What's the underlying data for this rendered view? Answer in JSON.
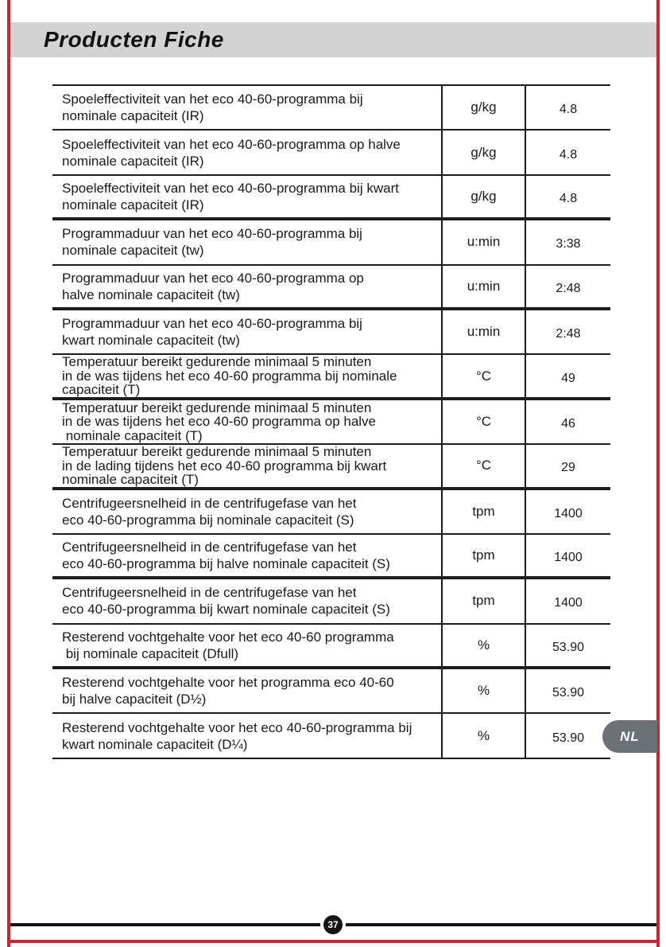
{
  "page": {
    "title": "Producten Fiche",
    "language_badge": "NL",
    "page_number": "37"
  },
  "colors": {
    "border_red": "#cb2733",
    "title_bar_gray": "#d3d3d3",
    "badge_gray": "#6c7177",
    "line_black": "#1d1d1d"
  },
  "table": {
    "rows": [
      {
        "description": "Spoeleffectiviteit van het eco 40-60-programma bij\nnominale capaciteit (IR)",
        "unit": "g/kg",
        "value": "4.8",
        "divider_below": "thin"
      },
      {
        "description": "Spoeleffectiviteit van het eco 40-60-programma op halve\nnominale capaciteit (IR)",
        "unit": "g/kg",
        "value": "4.8",
        "divider_below": "thin"
      },
      {
        "description": "Spoeleffectiviteit van het eco 40-60-programma bij kwart\nnominale capaciteit (IR)",
        "unit": "g/kg",
        "value": "4.8",
        "divider_below": "thick"
      },
      {
        "description": "Programmaduur van het eco 40-60-programma bij\nnominale capaciteit (tw)",
        "unit": "u:min",
        "value": "3:38",
        "divider_below": "thin"
      },
      {
        "description": "Programmaduur van het eco 40-60-programma op\nhalve nominale capaciteit (tw)",
        "unit": "u:min",
        "value": "2:48",
        "divider_below": "thick"
      },
      {
        "description": "Programmaduur van het eco 40-60-programma bij\nkwart nominale capaciteit (tw)",
        "unit": "u:min",
        "value": "2:48",
        "divider_below": "thin"
      },
      {
        "description": "Temperatuur bereikt gedurende minimaal 5 minuten\nin de was tijdens het eco 40-60 programma bij nominale\ncapaciteit (T)",
        "unit": "°C",
        "value": "49",
        "divider_below": "thick"
      },
      {
        "description": "Temperatuur bereikt gedurende minimaal 5 minuten\nin de was tijdens het eco 40-60 programma op halve\n nominale capaciteit (T)",
        "unit": "°C",
        "value": "46",
        "divider_below": "thin"
      },
      {
        "description": "Temperatuur bereikt gedurende minimaal 5 minuten\nin de lading tijdens het eco 40-60 programma bij kwart\nnominale capaciteit (T)",
        "unit": "°C",
        "value": "29",
        "divider_below": "thick"
      },
      {
        "description": "Centrifugeersnelheid in de centrifugefase van het\neco 40-60-programma bij nominale capaciteit (S)",
        "unit": "tpm",
        "value": "1400",
        "divider_below": "thin"
      },
      {
        "description": "Centrifugeersnelheid in de centrifugefase van het\neco 40-60-programma bij halve nominale capaciteit (S)",
        "unit": "tpm",
        "value": "1400",
        "divider_below": "thick"
      },
      {
        "description": "Centrifugeersnelheid in de centrifugefase van het\neco 40-60-programma bij kwart nominale capaciteit (S)",
        "unit": "tpm",
        "value": "1400",
        "divider_below": "thin"
      },
      {
        "description": "Resterend vochtgehalte voor het eco 40-60 programma\n bij nominale capaciteit (Dfull)",
        "unit": "%",
        "value": "53.90",
        "divider_below": "thick"
      },
      {
        "description": "Resterend vochtgehalte voor het programma eco 40-60\nbij halve capaciteit (D½)",
        "unit": "%",
        "value": "53.90",
        "divider_below": "thin"
      },
      {
        "description": "Resterend vochtgehalte voor het eco 40-60-programma bij\nkwart nominale capaciteit (D¼)",
        "unit": "%",
        "value": "53.90",
        "divider_below": "thin"
      }
    ]
  }
}
